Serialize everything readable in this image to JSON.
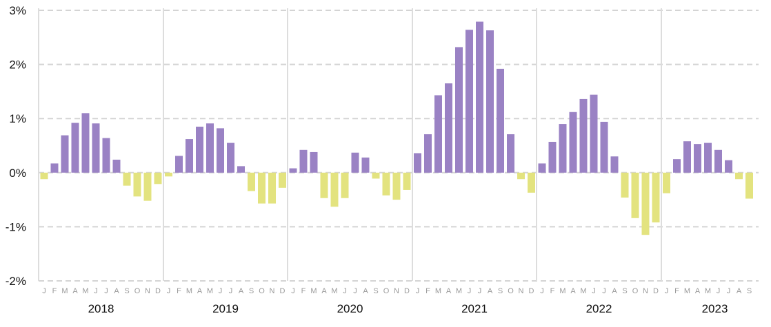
{
  "chart_data": {
    "type": "bar",
    "title": "",
    "xlabel": "",
    "ylabel": "",
    "ylim": [
      -2,
      3
    ],
    "yticks": [
      {
        "value": 3,
        "label": "3%"
      },
      {
        "value": 2,
        "label": "2%"
      },
      {
        "value": 1,
        "label": "1%"
      },
      {
        "value": 0,
        "label": "0%"
      },
      {
        "value": -1,
        "label": "-1%"
      },
      {
        "value": -2,
        "label": "-2%"
      }
    ],
    "grid": true,
    "colors": {
      "positive": "#9a82c4",
      "negative": "#e3e37f",
      "grid": "#d4d4d4"
    },
    "years": [
      {
        "label": "2018",
        "month_labels": "JFMAMJJASOND",
        "values": [
          -0.12,
          0.17,
          0.69,
          0.92,
          1.1,
          0.91,
          0.64,
          0.24,
          -0.24,
          -0.44,
          -0.52,
          -0.21
        ]
      },
      {
        "label": "2019",
        "month_labels": "JFMAMJJASOND",
        "values": [
          -0.07,
          0.31,
          0.62,
          0.85,
          0.91,
          0.82,
          0.55,
          0.12,
          -0.34,
          -0.57,
          -0.57,
          -0.28
        ]
      },
      {
        "label": "2020",
        "month_labels": "JFMAMJJASOND",
        "values": [
          0.08,
          0.42,
          0.38,
          -0.47,
          -0.63,
          -0.47,
          0.37,
          0.28,
          -0.11,
          -0.42,
          -0.5,
          -0.32
        ]
      },
      {
        "label": "2021",
        "month_labels": "JFMAMJJASOND",
        "values": [
          0.36,
          0.71,
          1.43,
          1.65,
          2.32,
          2.64,
          2.79,
          2.63,
          1.92,
          0.71,
          -0.12,
          -0.37
        ]
      },
      {
        "label": "2022",
        "month_labels": "JFMAMJJASOND",
        "values": [
          0.17,
          0.57,
          0.9,
          1.12,
          1.36,
          1.44,
          0.94,
          0.3,
          -0.46,
          -0.84,
          -1.15,
          -0.92
        ]
      },
      {
        "label": "2023",
        "month_labels": "JFMAMJJAS",
        "values": [
          -0.38,
          0.25,
          0.58,
          0.53,
          0.55,
          0.42,
          0.23,
          -0.12,
          -0.48
        ]
      }
    ]
  }
}
